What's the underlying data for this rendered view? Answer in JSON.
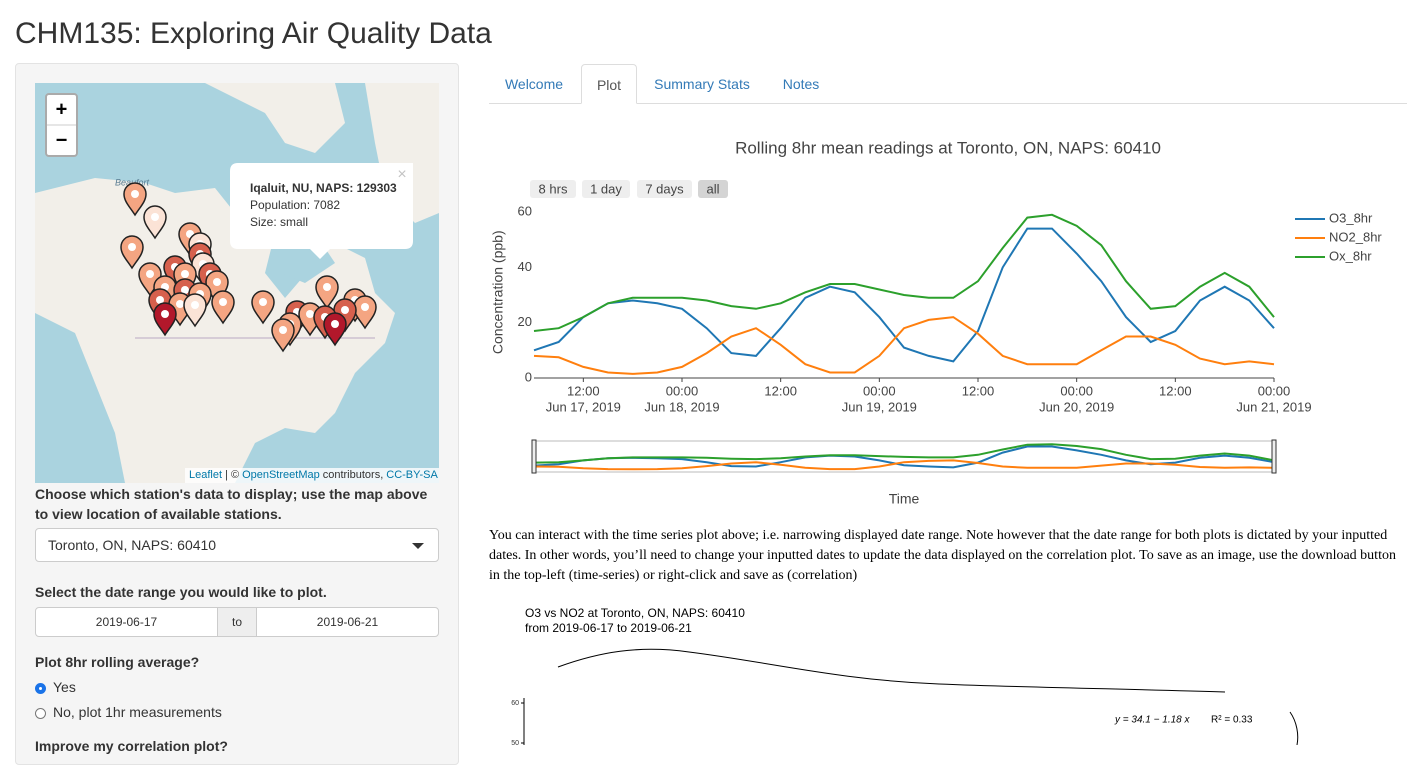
{
  "header": {
    "title": "CHM135: Exploring Air Quality Data"
  },
  "sidebar": {
    "map": {
      "zoom_in": "+",
      "zoom_out": "−",
      "place_label": "Beaufort",
      "popup": {
        "close": "×",
        "title": "Iqaluit, NU, NAPS: 129303",
        "lines": [
          "Population: 7082",
          "Size: small"
        ]
      },
      "attribution": [
        "Leaflet",
        "| ©",
        "OpenStreetMap",
        "contributors,",
        "CC-BY-SA"
      ]
    },
    "station_label": "Choose which station's data to display; use the map above to view location of available stations.",
    "station_value": "Toronto, ON, NAPS: 60410",
    "date_label": "Select the date range you would like to plot.",
    "date_start": "2019-06-17",
    "date_sep": "to",
    "date_end": "2019-06-21",
    "rolling_label": "Plot 8hr rolling average?",
    "options": [
      "Yes",
      "No, plot 1hr measurements"
    ],
    "selected": 0,
    "next_label": "Improve my correlation plot?"
  },
  "tabs": [
    "Welcome",
    "Plot",
    "Summary Stats",
    "Notes"
  ],
  "active_tab": 1,
  "chart_data": {
    "type": "line",
    "title": "Rolling 8hr mean readings at  Toronto, ON, NAPS: 60410",
    "buttons": [
      "8 hrs",
      "1 day",
      "7 days",
      "all"
    ],
    "active_button": 3,
    "y_label": "Concentration (ppb)",
    "x_label": "Time",
    "x": [
      "2019-06-17 06:00",
      "2019-06-17 09:00",
      "2019-06-17 12:00",
      "2019-06-17 15:00",
      "2019-06-17 18:00",
      "2019-06-17 21:00",
      "2019-06-18 00:00",
      "2019-06-18 03:00",
      "2019-06-18 06:00",
      "2019-06-18 09:00",
      "2019-06-18 12:00",
      "2019-06-18 15:00",
      "2019-06-18 18:00",
      "2019-06-18 21:00",
      "2019-06-19 00:00",
      "2019-06-19 03:00",
      "2019-06-19 06:00",
      "2019-06-19 09:00",
      "2019-06-19 12:00",
      "2019-06-19 15:00",
      "2019-06-19 18:00",
      "2019-06-19 21:00",
      "2019-06-20 00:00",
      "2019-06-20 03:00",
      "2019-06-20 06:00",
      "2019-06-20 09:00",
      "2019-06-20 12:00",
      "2019-06-20 15:00",
      "2019-06-20 18:00",
      "2019-06-20 21:00",
      "2019-06-21 00:00"
    ],
    "series": [
      {
        "name": "O3_8hr",
        "color": "#1f77b4",
        "values": [
          10,
          13,
          22,
          27,
          28,
          27,
          25,
          18,
          9,
          8,
          18,
          29,
          33,
          31,
          22,
          11,
          8,
          6,
          17,
          40,
          54,
          54,
          45,
          35,
          22,
          13,
          17,
          28,
          33,
          28,
          18
        ]
      },
      {
        "name": "NO2_8hr",
        "color": "#ff7f0e",
        "values": [
          8,
          7.5,
          4,
          2,
          1.5,
          2,
          4,
          9,
          15,
          18,
          12,
          5,
          2,
          2,
          8,
          18,
          21,
          22,
          16,
          8,
          5,
          5,
          5,
          10,
          15,
          15,
          12,
          7,
          5,
          6,
          5
        ]
      },
      {
        "name": "Ox_8hr",
        "color": "#2ca02c",
        "values": [
          17,
          18,
          22,
          27,
          29,
          29,
          29,
          28,
          26,
          25,
          27,
          31,
          34,
          34,
          32,
          30,
          29,
          29,
          35,
          47,
          58,
          59,
          55,
          48,
          35,
          25,
          26,
          33,
          38,
          33,
          22
        ]
      }
    ],
    "xlim": [
      "2019-06-17 06:00",
      "2019-06-21 00:00"
    ],
    "xticks": [
      {
        "value": "2019-06-17 12:00",
        "label": "12:00"
      },
      {
        "value": "2019-06-18 00:00",
        "label": "00:00"
      },
      {
        "value": "2019-06-18 12:00",
        "label": "12:00"
      },
      {
        "value": "2019-06-19 00:00",
        "label": "00:00"
      },
      {
        "value": "2019-06-19 12:00",
        "label": "12:00"
      },
      {
        "value": "2019-06-20 00:00",
        "label": "00:00"
      },
      {
        "value": "2019-06-20 12:00",
        "label": "12:00"
      },
      {
        "value": "2019-06-21 00:00",
        "label": "00:00"
      }
    ],
    "xtick_dates": [
      {
        "value": "2019-06-17 12:00",
        "label": "Jun 17, 2019"
      },
      {
        "value": "2019-06-18 00:00",
        "label": "Jun 18, 2019"
      },
      {
        "value": "2019-06-19 00:00",
        "label": "Jun 19, 2019"
      },
      {
        "value": "2019-06-20 00:00",
        "label": "Jun 20, 2019"
      },
      {
        "value": "2019-06-21 00:00",
        "label": "Jun 21, 2019"
      }
    ],
    "ylim": [
      0,
      62
    ],
    "yticks": [
      0,
      20,
      40,
      60
    ],
    "legend": "top-right",
    "range_slider": true
  },
  "description": "You can interact with the time series plot above; i.e. narrowing displayed date range. Note however that the date range for both plots is dictated by your inputted dates. In other words, you’ll need to change your inputted dates to update the data displayed on the correlation plot. To save as an image, use the download button in the top-left (time-series) or right-click and save as (correlation)",
  "correlation": {
    "title": "O3 vs NO2 at  Toronto, ON, NAPS: 60410",
    "subtitle": "from  2019-06-17  to  2019-06-21",
    "yticks": [
      60,
      50
    ],
    "equation": "y = 34.1 − 1.18 x",
    "r2": "R² = 0.33"
  }
}
